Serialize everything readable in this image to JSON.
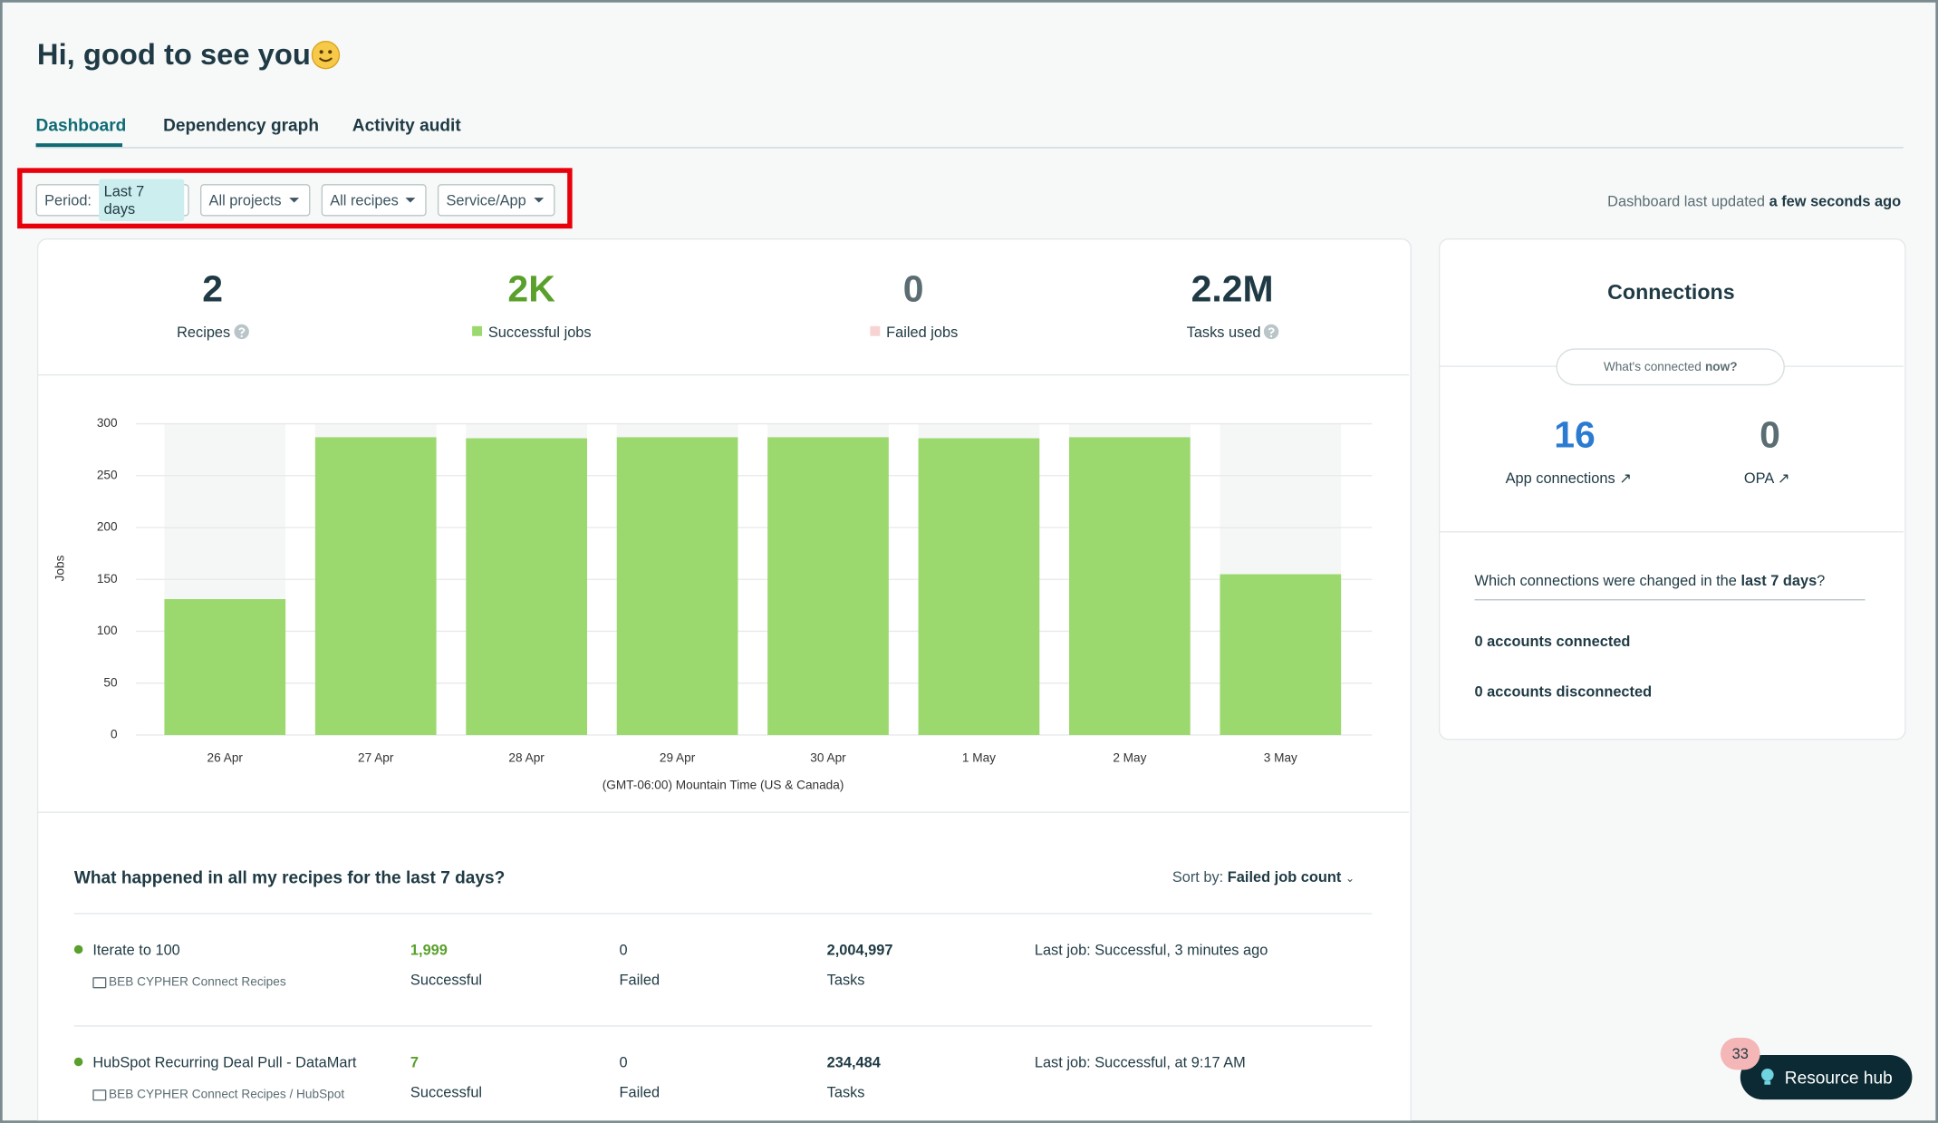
{
  "header": {
    "title": "Hi, good to see you"
  },
  "tabs": [
    "Dashboard",
    "Dependency graph",
    "Activity audit"
  ],
  "filters": {
    "period_label": "Period:",
    "period_value": "Last 7 days",
    "projects": "All projects",
    "recipes": "All recipes",
    "service": "Service/App"
  },
  "last_updated": {
    "text": "Dashboard last updated",
    "value": "a few seconds ago"
  },
  "stats": [
    {
      "value": 2,
      "label": "Recipes"
    },
    {
      "value": "2K",
      "label": "Successful jobs"
    },
    {
      "value": 0,
      "label": "Failed jobs"
    },
    {
      "value": "2.2M",
      "label": "Tasks used"
    }
  ],
  "chart_data": {
    "type": "bar",
    "categories": [
      "26 Apr",
      "27 Apr",
      "28 Apr",
      "29 Apr",
      "30 Apr",
      "1 May",
      "2 May",
      "3 May"
    ],
    "values": [
      131,
      287,
      286,
      287,
      287,
      286,
      287,
      155
    ],
    "color": "#9bd96e",
    "ylim": [
      0,
      300
    ],
    "yticks": [
      0,
      50,
      100,
      150,
      200,
      250,
      300
    ],
    "ylabel": "Jobs",
    "xlabel": "(GMT-06:00) Mountain Time (US & Canada)",
    "grid": true
  },
  "recipes": {
    "title": "What happened in all my recipes for the last 7 days?",
    "sort_label": "Sort by:",
    "sort_value": "Failed job count",
    "rows": [
      {
        "name": "Iterate to 100",
        "folder": "BEB CYPHER Connect Recipes",
        "successful": "1,999",
        "successful_label": "Successful",
        "failed": 0,
        "failed_label": "Failed",
        "tasks": "2,004,997",
        "tasks_label": "Tasks",
        "last_job": "Last job: Successful, 3 minutes ago"
      },
      {
        "name": "HubSpot Recurring Deal Pull - DataMart",
        "folder": "BEB CYPHER Connect Recipes / HubSpot",
        "successful": 7,
        "successful_label": "Successful",
        "failed": 0,
        "failed_label": "Failed",
        "tasks": "234,484",
        "tasks_label": "Tasks",
        "last_job": "Last job: Successful, at 9:17 AM"
      }
    ]
  },
  "connections": {
    "title": "Connections",
    "pill_text": "What's connected",
    "pill_bold": "now?",
    "app_connections": 16,
    "app_connections_label": "App connections",
    "opa": 0,
    "opa_label": "OPA",
    "question_prefix": "Which connections were changed in the",
    "question_bold": "last 7 days",
    "question_suffix": "?",
    "connected": "0 accounts connected",
    "disconnected": "0 accounts disconnected"
  },
  "resource_hub": {
    "label": "Resource hub",
    "badge": 33
  }
}
